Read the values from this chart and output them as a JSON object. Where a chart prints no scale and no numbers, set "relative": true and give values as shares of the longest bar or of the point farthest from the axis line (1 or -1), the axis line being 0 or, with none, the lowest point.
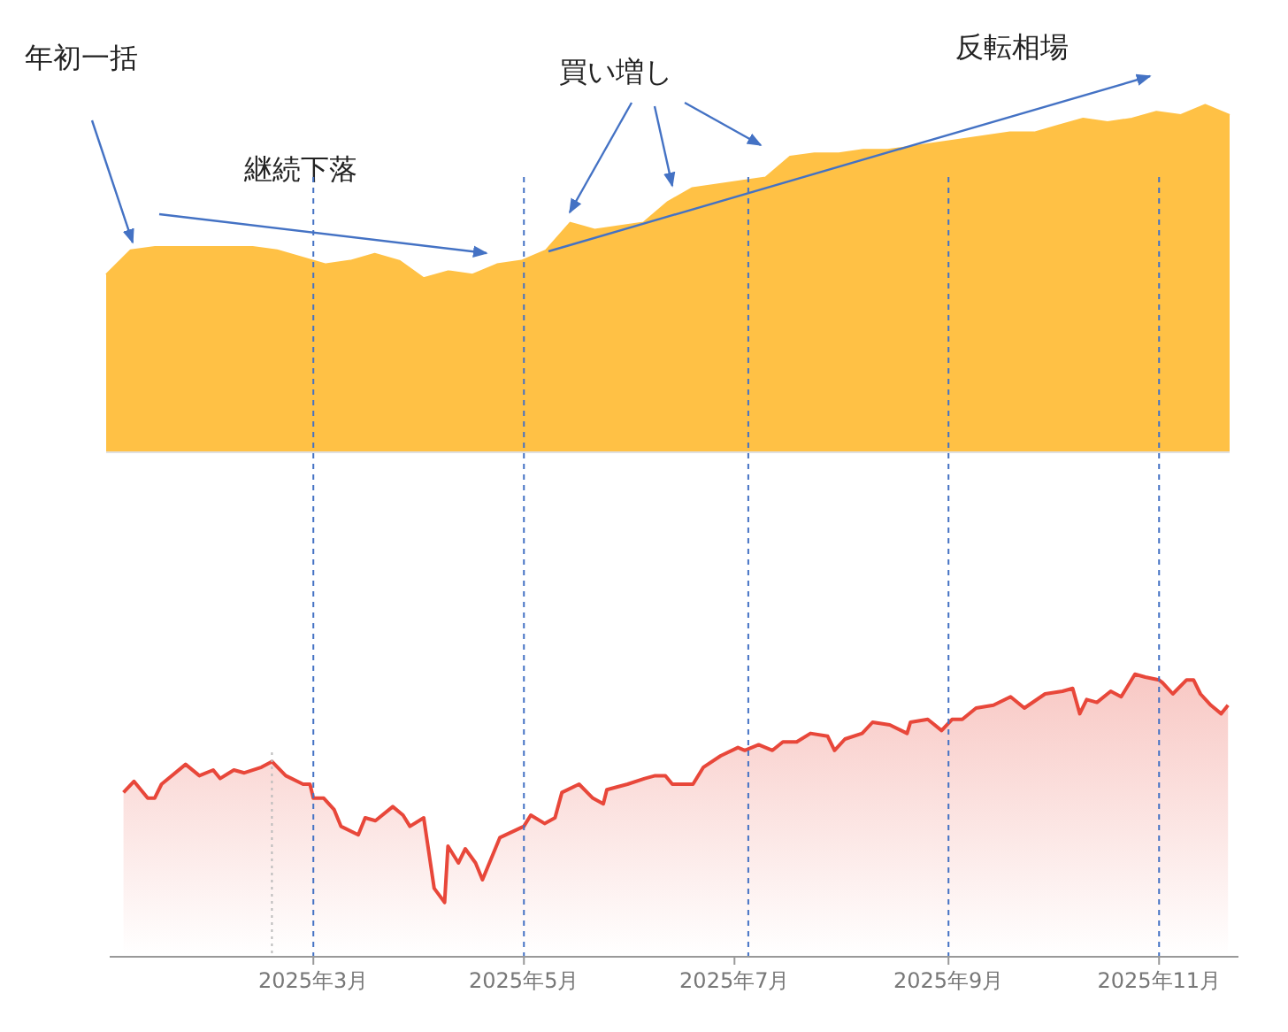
{
  "chart_data": [
    {
      "type": "area",
      "relative": true,
      "tick_labels": false,
      "annotations": [
        "年初一括",
        "継続下落",
        "買い増し",
        "反転相場"
      ],
      "categories": [
        null,
        null,
        null,
        null,
        null,
        null,
        null,
        null,
        null,
        null,
        null,
        null,
        null,
        null,
        null,
        null,
        null,
        null,
        null,
        null,
        null,
        null,
        null,
        null,
        null,
        null,
        null,
        null,
        null,
        null,
        null,
        null,
        null,
        null,
        null,
        null,
        null,
        null,
        null,
        null,
        null,
        null,
        null,
        null,
        null,
        null,
        null
      ],
      "series": [
        {
          "color": "#ffc145",
          "values": [
            0.51,
            0.58,
            0.59,
            0.59,
            0.59,
            0.59,
            0.59,
            0.58,
            0.56,
            0.54,
            0.55,
            0.57,
            0.55,
            0.5,
            0.52,
            0.51,
            0.54,
            0.55,
            0.58,
            0.66,
            0.64,
            0.65,
            0.66,
            0.72,
            0.76,
            0.77,
            0.78,
            0.79,
            0.85,
            0.86,
            0.86,
            0.87,
            0.87,
            0.88,
            0.89,
            0.9,
            0.91,
            0.92,
            0.92,
            0.94,
            0.96,
            0.95,
            0.96,
            0.98,
            0.97,
            1.0,
            0.97
          ]
        }
      ]
    },
    {
      "type": "area",
      "relative": true,
      "tick_labels": "x",
      "xlim": [
        "2025-01-01",
        "2025-11-24"
      ],
      "xticks": [
        {
          "value": "2025-03-01",
          "label": "2025年3月"
        },
        {
          "value": "2025-05-01",
          "label": "2025年5月"
        },
        {
          "value": "2025-07-01",
          "label": "2025年7月"
        },
        {
          "value": "2025-09-01",
          "label": "2025年9月"
        },
        {
          "value": "2025-11-01",
          "label": "2025年11月"
        }
      ],
      "ref_lines": [
        {
          "axis": "x",
          "value": "2025-02-17",
          "color": "#bbbbbb",
          "line_style": "dotted"
        },
        {
          "axis": "x",
          "value": "2025-03-01",
          "color": "#4472c4",
          "line_style": "dashed"
        },
        {
          "axis": "x",
          "value": "2025-05-01",
          "color": "#4472c4",
          "line_style": "dashed"
        },
        {
          "axis": "x",
          "value": "2025-07-05",
          "color": "#4472c4",
          "line_style": "dashed"
        },
        {
          "axis": "x",
          "value": "2025-09-01",
          "color": "#4472c4",
          "line_style": "dashed"
        },
        {
          "axis": "x",
          "value": "2025-11-01",
          "color": "#4472c4",
          "line_style": "dashed"
        }
      ],
      "series": [
        {
          "color": "#e8473a",
          "x": [
            "2025-01-05",
            "2025-01-08",
            "2025-01-10",
            "2025-01-12",
            "2025-01-14",
            "2025-01-16",
            "2025-01-23",
            "2025-01-27",
            "2025-01-31",
            "2025-02-02",
            "2025-02-06",
            "2025-02-09",
            "2025-02-14",
            "2025-02-17",
            "2025-02-21",
            "2025-02-26",
            "2025-02-28",
            "2025-03-01",
            "2025-03-04",
            "2025-03-07",
            "2025-03-09",
            "2025-03-14",
            "2025-03-16",
            "2025-03-19",
            "2025-03-24",
            "2025-03-27",
            "2025-03-29",
            "2025-04-02",
            "2025-04-05",
            "2025-04-08",
            "2025-04-09",
            "2025-04-12",
            "2025-04-14",
            "2025-04-17",
            "2025-04-19",
            "2025-04-24",
            "2025-05-01",
            "2025-05-03",
            "2025-05-07",
            "2025-05-10",
            "2025-05-12",
            "2025-05-17",
            "2025-05-21",
            "2025-05-24",
            "2025-05-25",
            "2025-05-31",
            "2025-06-05",
            "2025-06-08",
            "2025-06-11",
            "2025-06-13",
            "2025-06-19",
            "2025-06-22",
            "2025-06-27",
            "2025-07-02",
            "2025-07-04",
            "2025-07-08",
            "2025-07-12",
            "2025-07-15",
            "2025-07-19",
            "2025-07-23",
            "2025-07-28",
            "2025-07-30",
            "2025-08-02",
            "2025-08-07",
            "2025-08-10",
            "2025-08-15",
            "2025-08-20",
            "2025-08-21",
            "2025-08-26",
            "2025-08-30",
            "2025-09-02",
            "2025-09-05",
            "2025-09-09",
            "2025-09-14",
            "2025-09-19",
            "2025-09-23",
            "2025-09-29",
            "2025-10-04",
            "2025-10-07",
            "2025-10-09",
            "2025-10-11",
            "2025-10-14",
            "2025-10-18",
            "2025-10-21",
            "2025-10-25",
            "2025-10-28",
            "2025-11-01",
            "2025-11-02",
            "2025-11-05",
            "2025-11-09",
            "2025-11-11",
            "2025-11-13",
            "2025-11-16",
            "2025-11-19",
            "2025-11-21"
          ],
          "values": [
            0.58,
            0.62,
            0.59,
            0.56,
            0.56,
            0.61,
            0.68,
            0.64,
            0.66,
            0.63,
            0.66,
            0.65,
            0.67,
            0.69,
            0.64,
            0.61,
            0.61,
            0.56,
            0.56,
            0.52,
            0.46,
            0.43,
            0.49,
            0.48,
            0.53,
            0.5,
            0.46,
            0.49,
            0.24,
            0.19,
            0.39,
            0.33,
            0.38,
            0.33,
            0.27,
            0.42,
            0.46,
            0.5,
            0.47,
            0.49,
            0.58,
            0.61,
            0.56,
            0.54,
            0.59,
            0.61,
            0.63,
            0.64,
            0.64,
            0.61,
            0.61,
            0.67,
            0.71,
            0.74,
            0.73,
            0.75,
            0.73,
            0.76,
            0.76,
            0.79,
            0.78,
            0.73,
            0.77,
            0.79,
            0.83,
            0.82,
            0.79,
            0.83,
            0.84,
            0.8,
            0.84,
            0.84,
            0.88,
            0.89,
            0.92,
            0.88,
            0.93,
            0.94,
            0.95,
            0.86,
            0.91,
            0.9,
            0.94,
            0.92,
            1.0,
            0.99,
            0.98,
            0.97,
            0.93,
            0.98,
            0.98,
            0.93,
            0.89,
            0.86,
            0.89
          ]
        }
      ]
    }
  ]
}
